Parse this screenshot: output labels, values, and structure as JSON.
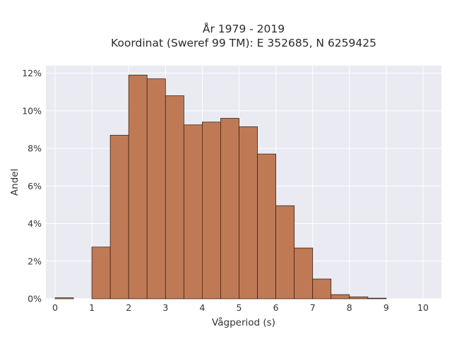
{
  "chart_data": {
    "type": "bar",
    "title": "År 1979 - 2019",
    "subtitle": "Koordinat (Sweref 99 TM): E 352685, N 6259425",
    "xlabel": "Vågperiod (s)",
    "ylabel": "Andel",
    "xlim": [
      -0.25,
      10.5
    ],
    "ylim": [
      0,
      12.4
    ],
    "x_ticks": [
      0,
      1,
      2,
      3,
      4,
      5,
      6,
      7,
      8,
      9,
      10
    ],
    "y_ticks": [
      0,
      2,
      4,
      6,
      8,
      10,
      12
    ],
    "y_tick_labels": [
      "0%",
      "2%",
      "4%",
      "6%",
      "8%",
      "10%",
      "12%"
    ],
    "bin_width": 0.5,
    "bin_starts": [
      0,
      0.5,
      1,
      1.5,
      2,
      2.5,
      3,
      3.5,
      4,
      4.5,
      5,
      5.5,
      6,
      6.5,
      7,
      7.5,
      8,
      8.5,
      9,
      9.5
    ],
    "values": [
      0.05,
      0,
      2.75,
      8.7,
      11.9,
      11.7,
      10.8,
      9.25,
      9.4,
      9.6,
      9.15,
      7.7,
      4.95,
      2.7,
      1.05,
      0.22,
      0.1,
      0.03,
      0,
      0
    ],
    "grid": true,
    "colors": {
      "bar_fill": "#bf7a55",
      "bar_edge": "#3a2418",
      "plot_background": "#eaeaf2",
      "grid": "#ffffff"
    }
  }
}
